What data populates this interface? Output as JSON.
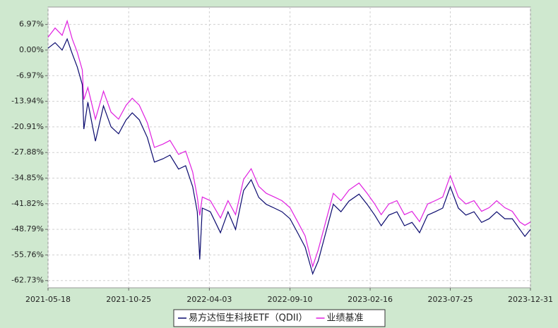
{
  "chart_data": {
    "type": "line",
    "x": [
      "2021-05-18",
      "2021-06-01",
      "2021-06-15",
      "2021-06-25",
      "2021-07-05",
      "2021-07-15",
      "2021-07-25",
      "2021-07-28",
      "2021-08-05",
      "2021-08-20",
      "2021-09-05",
      "2021-09-20",
      "2021-10-05",
      "2021-10-20",
      "2021-11-01",
      "2021-11-15",
      "2021-12-01",
      "2021-12-15",
      "2022-01-01",
      "2022-01-15",
      "2022-02-01",
      "2022-02-15",
      "2022-03-01",
      "2022-03-10",
      "2022-03-15",
      "2022-03-20",
      "2022-04-05",
      "2022-04-25",
      "2022-05-10",
      "2022-05-25",
      "2022-06-10",
      "2022-06-25",
      "2022-07-10",
      "2022-07-25",
      "2022-08-10",
      "2022-08-25",
      "2022-09-10",
      "2022-09-25",
      "2022-10-10",
      "2022-10-25",
      "2022-11-05",
      "2022-11-20",
      "2022-12-05",
      "2022-12-20",
      "2023-01-05",
      "2023-01-25",
      "2023-02-10",
      "2023-02-25",
      "2023-03-10",
      "2023-03-25",
      "2023-04-10",
      "2023-04-25",
      "2023-05-10",
      "2023-05-25",
      "2023-06-10",
      "2023-06-25",
      "2023-07-10",
      "2023-07-25",
      "2023-08-10",
      "2023-08-25",
      "2023-09-10",
      "2023-09-25",
      "2023-10-10",
      "2023-10-25",
      "2023-11-10",
      "2023-11-25",
      "2023-12-10",
      "2023-12-20",
      "2023-12-31"
    ],
    "series": [
      {
        "name": "易方达恒生科技ETF（QDII）",
        "color": "#0a0a6e",
        "values": [
          0.5,
          2,
          0,
          3,
          -1,
          -4.6,
          -9.4,
          -21.5,
          -14.2,
          -24.8,
          -15.2,
          -20.9,
          -22.8,
          -19,
          -17.1,
          -19,
          -23.8,
          -30.5,
          -29.6,
          -28.6,
          -32.4,
          -31.5,
          -37.2,
          -44,
          -57,
          -43,
          -44,
          -49.7,
          -44,
          -48.8,
          -38.2,
          -35.3,
          -40.1,
          -42,
          -43,
          -44,
          -45.9,
          -49.7,
          -53.6,
          -60.9,
          -57.4,
          -49.7,
          -42,
          -44,
          -41.1,
          -39.2,
          -42,
          -44.9,
          -47.8,
          -44.9,
          -44,
          -47.8,
          -46.9,
          -49.7,
          -44.9,
          -44,
          -43,
          -37.2,
          -43,
          -44.9,
          -44,
          -46.9,
          -45.9,
          -44,
          -45.9,
          -45.9,
          -48.8,
          -50.7,
          -48.8
        ]
      },
      {
        "name": "业绩基准",
        "color": "#e020e0",
        "values": [
          3.5,
          6,
          4,
          7.9,
          3,
          -0.6,
          -5.4,
          -13.5,
          -10.2,
          -18.8,
          -11.2,
          -16.9,
          -18.8,
          -15,
          -13.1,
          -15,
          -19.8,
          -26.5,
          -25.6,
          -24.6,
          -28.4,
          -27.5,
          -33.2,
          -40,
          -45,
          -40,
          -41,
          -45.7,
          -41,
          -44.8,
          -35.2,
          -32.3,
          -37.1,
          -39,
          -40,
          -41,
          -42.9,
          -46.7,
          -50.6,
          -58.9,
          -54.4,
          -46.7,
          -39,
          -41,
          -38.1,
          -36.2,
          -39,
          -41.9,
          -44.8,
          -41.9,
          -41,
          -44.8,
          -43.9,
          -46.7,
          -41.9,
          -41,
          -40,
          -34.2,
          -40,
          -41.9,
          -41,
          -43.9,
          -42.9,
          -41,
          -42.9,
          -43.9,
          -46.8,
          -47.7,
          -46.8
        ]
      }
    ],
    "xlim": [
      "2021-05-18",
      "2023-12-31"
    ],
    "xticks": [
      "2021-05-18",
      "2021-10-25",
      "2022-04-03",
      "2022-09-10",
      "2023-02-16",
      "2023-07-25",
      "2023-12-31"
    ],
    "ylim": [
      -64.7,
      11.7
    ],
    "yticks": [
      {
        "value": 6.97,
        "label": "6.97%"
      },
      {
        "value": 0,
        "label": "0.00%"
      },
      {
        "value": -6.97,
        "label": "-6.97%"
      },
      {
        "value": -13.94,
        "label": "-13.94%"
      },
      {
        "value": -20.91,
        "label": "-20.91%"
      },
      {
        "value": -27.88,
        "label": "-27.88%"
      },
      {
        "value": -34.85,
        "label": "-34.85%"
      },
      {
        "value": -41.82,
        "label": "-41.82%"
      },
      {
        "value": -48.79,
        "label": "-48.79%"
      },
      {
        "value": -55.76,
        "label": "-55.76%"
      },
      {
        "value": -62.73,
        "label": "-62.73%"
      }
    ],
    "grid": true
  }
}
